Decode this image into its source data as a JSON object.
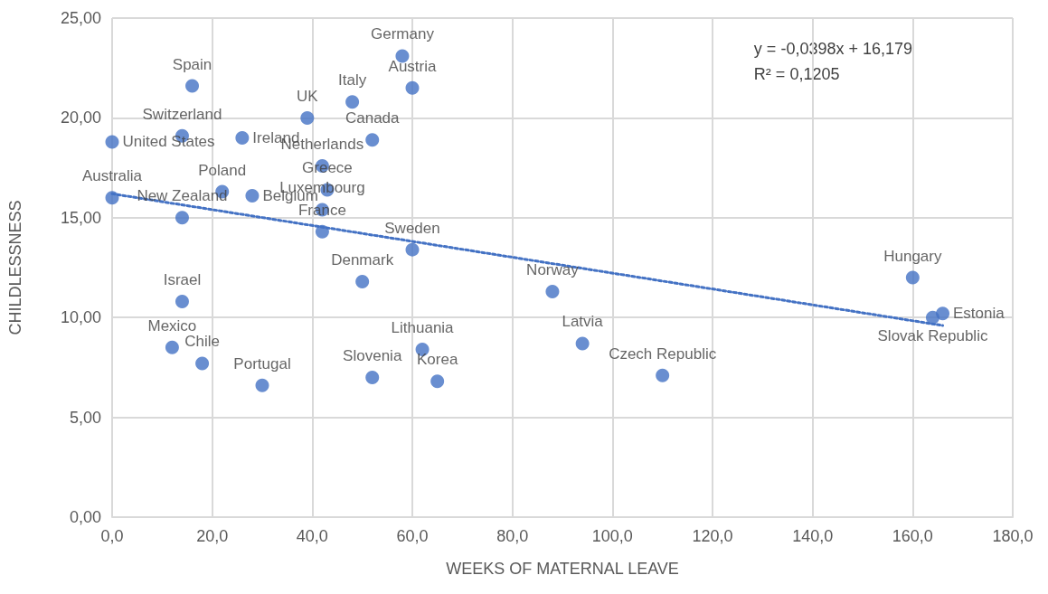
{
  "chart_data": {
    "type": "scatter",
    "xlabel": "WEEKS OF MATERNAL LEAVE",
    "ylabel": "CHILDLESSNESS",
    "xlim": [
      0,
      180
    ],
    "xticks": [
      {
        "value": 0,
        "label": "0,0"
      },
      {
        "value": 20,
        "label": "20,0"
      },
      {
        "value": 40,
        "label": "40,0"
      },
      {
        "value": 60,
        "label": "60,0"
      },
      {
        "value": 80,
        "label": "80,0"
      },
      {
        "value": 100,
        "label": "100,0"
      },
      {
        "value": 120,
        "label": "120,0"
      },
      {
        "value": 140,
        "label": "140,0"
      },
      {
        "value": 160,
        "label": "160,0"
      },
      {
        "value": 180,
        "label": "180,0"
      }
    ],
    "ylim": [
      0,
      25
    ],
    "yticks": [
      {
        "value": 0,
        "label": "0,00"
      },
      {
        "value": 5,
        "label": "5,00"
      },
      {
        "value": 10,
        "label": "10,00"
      },
      {
        "value": 15,
        "label": "15,00"
      },
      {
        "value": 20,
        "label": "20,00"
      },
      {
        "value": 25,
        "label": "25,00"
      }
    ],
    "grid": true,
    "marker": "circle",
    "annotations": [
      "y = -0,0398x + 16,179",
      "R² = 0,1205"
    ],
    "series": [
      {
        "type": "scatter",
        "color": "#4472c4",
        "x": [
          0,
          16,
          14,
          26,
          0,
          22,
          28,
          14,
          39,
          48,
          58,
          60,
          52,
          42,
          43,
          42,
          42,
          60,
          50,
          14,
          12,
          18,
          30,
          52,
          62,
          65,
          88,
          94,
          110,
          160,
          166,
          164
        ],
        "values": [
          18.8,
          21.6,
          19.1,
          19.0,
          16.0,
          16.3,
          16.1,
          15.0,
          20.0,
          20.8,
          23.1,
          21.5,
          18.9,
          17.6,
          16.4,
          15.4,
          14.3,
          13.4,
          11.8,
          10.8,
          8.5,
          7.7,
          6.6,
          7.0,
          8.4,
          6.8,
          11.3,
          8.7,
          7.1,
          12.0,
          10.2,
          10.0
        ],
        "value_labels": [
          "United States",
          "Spain",
          "Switzerland",
          "Ireland",
          "Australia",
          "Poland",
          "Belgium",
          "New Zealand",
          "UK",
          "Italy",
          "Germany",
          "Austria",
          "Canada",
          "Netherlands",
          "Greece",
          "Luxembourg",
          "France",
          "Sweden",
          "Denmark",
          "Israel",
          "Mexico",
          "Chile",
          "Portugal",
          "Slovenia",
          "Lithuania",
          "Korea",
          "Norway",
          "Latvia",
          "Czech Republic",
          "Hungary",
          "Estonia",
          "Slovak Republic"
        ]
      },
      {
        "type": "line",
        "color": "#4472c4",
        "marker": "none",
        "line_style": "dotted",
        "x": [
          0,
          166
        ],
        "values": [
          16.2,
          9.6
        ]
      }
    ]
  }
}
